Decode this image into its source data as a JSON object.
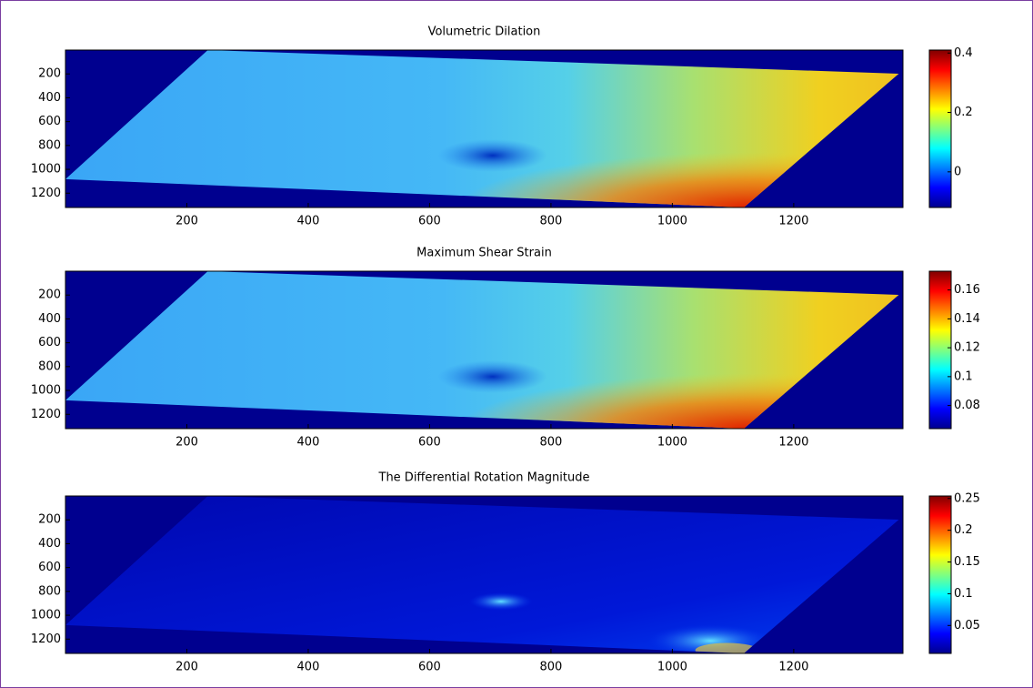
{
  "chart_data": [
    {
      "type": "image",
      "title": "Volumetric Dilation",
      "colormap": "jet",
      "xlim": [
        0,
        1380
      ],
      "xticks": [
        200,
        400,
        600,
        800,
        1000,
        1200
      ],
      "ylim": [
        1320,
        0
      ],
      "yticks": [
        200,
        400,
        600,
        800,
        1000,
        1200
      ],
      "clim": [
        -0.12,
        0.41
      ],
      "cticks": [
        0,
        0.2,
        0.4
      ]
    },
    {
      "type": "image",
      "title": "Maximum Shear Strain",
      "colormap": "jet",
      "xlim": [
        0,
        1380
      ],
      "xticks": [
        200,
        400,
        600,
        800,
        1000,
        1200
      ],
      "ylim": [
        1320,
        0
      ],
      "yticks": [
        200,
        400,
        600,
        800,
        1000,
        1200
      ],
      "clim": [
        0.064,
        0.173
      ],
      "cticks": [
        0.08,
        0.1,
        0.12,
        0.14,
        0.16
      ]
    },
    {
      "type": "image",
      "title": "The Differential Rotation Magnitude",
      "colormap": "jet",
      "xlim": [
        0,
        1380
      ],
      "xticks": [
        200,
        400,
        600,
        800,
        1000,
        1200
      ],
      "ylim": [
        1320,
        0
      ],
      "yticks": [
        200,
        400,
        600,
        800,
        1000,
        1200
      ],
      "clim": [
        0.006,
        0.254
      ],
      "cticks": [
        0.05,
        0.1,
        0.15,
        0.2,
        0.25
      ]
    }
  ]
}
